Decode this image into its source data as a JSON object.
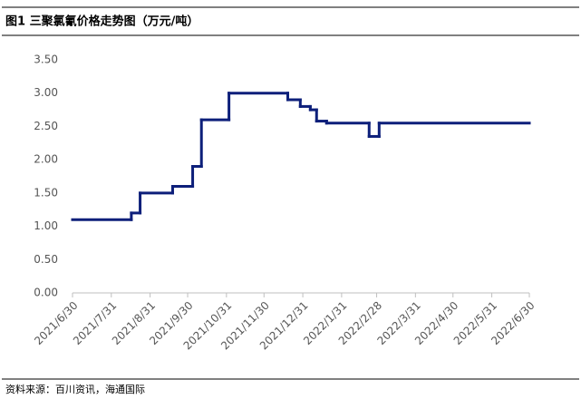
{
  "chart_data": {
    "type": "step-line",
    "title": "图1  三聚氯氰价格走势图（万元/吨）",
    "source": "资料来源：百川资讯，海通国际",
    "x": [
      "2021/6/30",
      "2021/8/16",
      "2021/8/23",
      "2021/9/18",
      "2021/10/4",
      "2021/10/11",
      "2021/11/2",
      "2021/12/19",
      "2021/12/29",
      "2022/1/6",
      "2022/1/11",
      "2022/1/19",
      "2022/2/22",
      "2022/3/2"
    ],
    "values": [
      1.1,
      1.2,
      1.5,
      1.6,
      1.9,
      2.6,
      3.0,
      2.9,
      2.8,
      2.75,
      2.58,
      2.55,
      2.35,
      2.55
    ],
    "color": "#0d1f7a",
    "xlim": [
      "2021/6/30",
      "2022/6/30"
    ],
    "xticks": [
      "2021/6/30",
      "2021/7/31",
      "2021/8/31",
      "2021/9/30",
      "2021/10/31",
      "2021/11/30",
      "2021/12/31",
      "2022/1/31",
      "2022/2/28",
      "2022/3/31",
      "2022/4/30",
      "2022/5/31",
      "2022/6/30"
    ],
    "ylim": [
      0,
      3.5
    ],
    "yticks": [
      {
        "value": 0,
        "label": "0.00"
      },
      {
        "value": 0.5,
        "label": "0.50"
      },
      {
        "value": 1,
        "label": "1.00"
      },
      {
        "value": 1.5,
        "label": "1.50"
      },
      {
        "value": 2,
        "label": "2.00"
      },
      {
        "value": 2.5,
        "label": "2.50"
      },
      {
        "value": 3,
        "label": "3.00"
      },
      {
        "value": 3.5,
        "label": "3.50"
      }
    ]
  }
}
